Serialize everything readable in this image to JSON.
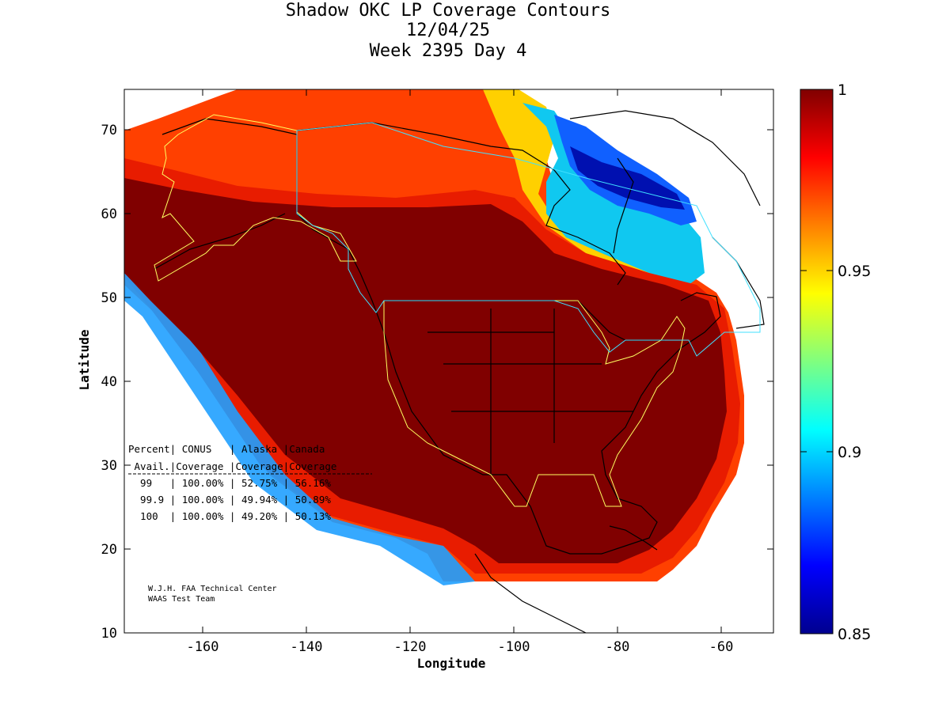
{
  "title": {
    "line1": "Shadow OKC LP Coverage Contours",
    "line2": "12/04/25",
    "line3": "Week 2395 Day 4"
  },
  "axes": {
    "xlabel": "Longitude",
    "ylabel": "Latitude",
    "x_ticks": [
      "-160",
      "-140",
      "-120",
      "-100",
      "-80",
      "-60"
    ],
    "y_ticks": [
      "10",
      "20",
      "30",
      "40",
      "50",
      "60",
      "70"
    ],
    "x_range": [
      -175,
      -50
    ],
    "y_range": [
      10,
      75
    ]
  },
  "colorbar": {
    "ticks": [
      "1",
      "0.95",
      "0.9",
      "0.85"
    ],
    "range": [
      0.85,
      1
    ],
    "colormap": "jet"
  },
  "table": {
    "header1": "Percent| CONUS   | Alaska |Canada",
    "header2": " Avail.|Coverage |Coverage|Coverage",
    "rows": [
      "  99   | 100.00% | 52.75% | 56.16%",
      "  99.9 | 100.00% | 49.94% | 50.89%",
      "  100  | 100.00% | 49.20% | 50.13%"
    ]
  },
  "credit": {
    "line1": "W.J.H. FAA Technical Center",
    "line2": "WAAS Test Team"
  },
  "colors": {
    "dark_red": "#800000",
    "red": "#e81c00",
    "orange_red": "#ff4000",
    "orange": "#ff8000",
    "yellow": "#ffe000",
    "cyan": "#10d8f0",
    "blue": "#0050ff",
    "dark_blue": "#00008f",
    "boundary_yellow": "#ffff60",
    "boundary_cyan": "#40e0ff"
  }
}
